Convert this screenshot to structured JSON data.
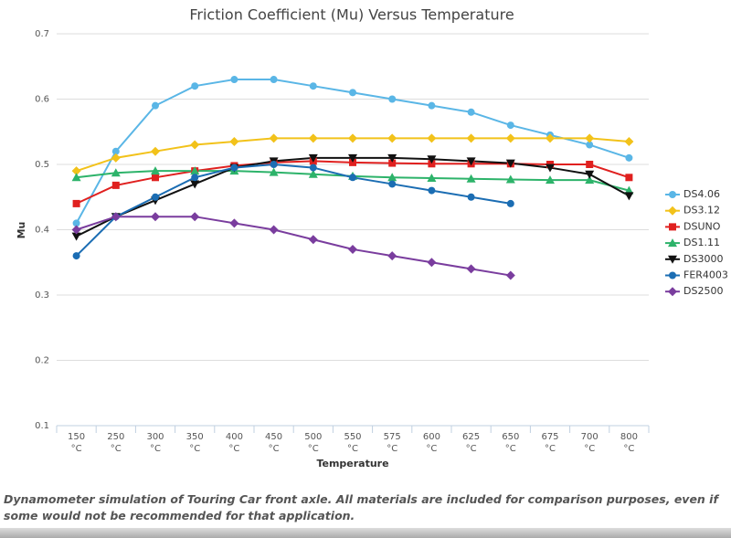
{
  "chart_data": {
    "type": "line",
    "title": "Friction Coefficient (Mu) Versus Temperature",
    "x_label": "Temperature",
    "y_label": "Mu",
    "categories": [
      "150 °C",
      "250 °C",
      "300 °C",
      "350 °C",
      "400 °C",
      "450 °C",
      "500 °C",
      "550 °C",
      "575 °C",
      "600 °C",
      "625 °C",
      "650 °C",
      "675 °C",
      "700 °C",
      "800 °C"
    ],
    "ylim": [
      0.1,
      0.7
    ],
    "yticks": [
      0.1,
      0.2,
      0.3,
      0.4,
      0.5,
      0.6,
      0.7
    ],
    "grid": true,
    "legend": "right",
    "series": [
      {
        "name": "DS4.06",
        "color": "#5ab6e6",
        "marker": "circle",
        "values": [
          0.41,
          0.52,
          0.59,
          0.62,
          0.63,
          0.63,
          0.62,
          0.61,
          0.6,
          0.59,
          0.58,
          0.56,
          0.545,
          0.53,
          0.51
        ]
      },
      {
        "name": "DS3.12",
        "color": "#f2c21a",
        "marker": "diamond",
        "values": [
          0.49,
          0.51,
          0.52,
          0.53,
          0.535,
          0.54,
          0.54,
          0.54,
          0.54,
          0.54,
          0.54,
          0.54,
          0.54,
          0.54,
          0.535
        ]
      },
      {
        "name": "DSUNO",
        "color": "#e0201f",
        "marker": "square",
        "values": [
          0.44,
          0.468,
          0.48,
          0.49,
          0.498,
          0.503,
          0.505,
          0.503,
          0.502,
          0.501,
          0.501,
          0.501,
          0.5,
          0.5,
          0.48
        ]
      },
      {
        "name": "DS1.11",
        "color": "#2db36a",
        "marker": "triangle",
        "values": [
          0.48,
          0.487,
          0.49,
          0.49,
          0.49,
          0.488,
          0.485,
          0.482,
          0.48,
          0.479,
          0.478,
          0.477,
          0.476,
          0.476,
          0.46
        ]
      },
      {
        "name": "DS3000",
        "color": "#111111",
        "marker": "triangle-down",
        "values": [
          0.39,
          0.42,
          0.445,
          0.47,
          0.495,
          0.505,
          0.51,
          0.51,
          0.51,
          0.508,
          0.505,
          0.502,
          0.495,
          0.485,
          0.452
        ]
      },
      {
        "name": "FER4003",
        "color": "#1b6db3",
        "marker": "circle",
        "values": [
          0.36,
          0.42,
          0.45,
          0.48,
          0.495,
          0.5,
          0.495,
          0.48,
          0.47,
          0.46,
          0.45,
          0.44,
          null,
          null,
          null
        ]
      },
      {
        "name": "DS2500",
        "color": "#7a3d9e",
        "marker": "diamond",
        "values": [
          0.4,
          0.42,
          0.42,
          0.42,
          0.41,
          0.4,
          0.385,
          0.37,
          0.36,
          0.35,
          0.34,
          0.33,
          null,
          null,
          null
        ]
      }
    ],
    "caption": "Dynamometer simulation of Touring Car front axle. All materials are included for comparison purposes, even if some would not be recommended for that application."
  }
}
